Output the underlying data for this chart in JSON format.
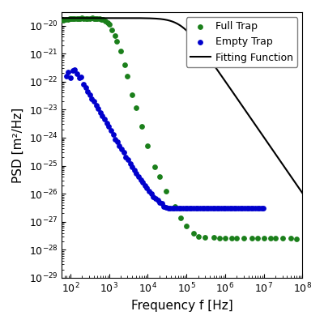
{
  "title": "",
  "xlabel": "Frequency f [Hz]",
  "ylabel": "PSD [m²/Hz]",
  "xlim": [
    60.0,
    100000000.0
  ],
  "ylim": [
    1e-29,
    3e-20
  ],
  "legend_labels": [
    "Full Trap",
    "Empty Trap",
    "Fitting Function"
  ],
  "green_color": "#1a7f1a",
  "blue_color": "#0000cc",
  "fit_color": "#000000",
  "fit_A": 1.85e-20,
  "fit_fc": 75000,
  "fit_gamma": 2.0,
  "noise_floor": 2.5e-28,
  "full_trap_x": [
    65,
    75,
    85,
    95,
    105,
    115,
    130,
    145,
    160,
    180,
    200,
    220,
    250,
    280,
    320,
    360,
    400,
    450,
    500,
    560,
    630,
    700,
    800,
    900,
    1000,
    1200,
    1400,
    1600,
    2000,
    2500,
    3000,
    4000,
    5000,
    7000,
    10000,
    15000,
    20000,
    30000,
    50000,
    70000,
    100000,
    150000,
    200000,
    300000,
    500000,
    700000,
    1000000,
    1500000,
    2000000,
    3000000,
    5000000,
    7000000,
    10000000,
    15000000,
    20000000,
    30000000,
    50000000,
    70000000
  ],
  "full_trap_y": [
    1.55e-20,
    1.65e-20,
    1.7e-20,
    1.75e-20,
    1.75e-20,
    1.78e-20,
    1.8e-20,
    1.82e-20,
    1.82e-20,
    1.82e-20,
    1.83e-20,
    1.82e-20,
    1.82e-20,
    1.82e-20,
    1.82e-20,
    1.83e-20,
    1.82e-20,
    1.82e-20,
    1.8e-20,
    1.78e-20,
    1.7e-20,
    1.6e-20,
    1.45e-20,
    1.3e-20,
    1.1e-20,
    7e-21,
    4.5e-21,
    2.8e-21,
    1.2e-21,
    4e-22,
    1.6e-22,
    3.5e-23,
    1.2e-23,
    2.5e-24,
    5e-25,
    9e-26,
    4e-26,
    1.2e-26,
    3.5e-27,
    1.4e-27,
    7e-28,
    4e-28,
    3e-28,
    2.8e-28,
    2.7e-28,
    2.6e-28,
    2.6e-28,
    2.6e-28,
    2.6e-28,
    2.6e-28,
    2.6e-28,
    2.6e-28,
    2.6e-28,
    2.6e-28,
    2.6e-28,
    2.6e-28,
    2.6e-28,
    2.5e-28
  ],
  "empty_trap_x": [
    78,
    88,
    100,
    115,
    130,
    148,
    168,
    190,
    215,
    245,
    278,
    315,
    357,
    405,
    460,
    522,
    592,
    672,
    762,
    865,
    981,
    1113,
    1263,
    1433,
    1626,
    1845,
    2094,
    2376,
    2696,
    3060,
    3471,
    3937,
    4467,
    5067,
    5748,
    6522,
    7400,
    8396,
    9528,
    10810,
    12263,
    13912,
    15787,
    17908,
    20321,
    23057,
    26158,
    29676,
    33671,
    38209,
    43345,
    49170,
    55781,
    63283,
    71789,
    81466,
    92415,
    104839,
    118959,
    134989,
    153128,
    173780,
    197108,
    223664,
    253702,
    287768,
    326464,
    370450,
    420443,
    477133,
    541358,
    614256,
    696952,
    790574,
    896947,
    1017900,
    1154882,
    1309844,
    1485895,
    1685428,
    1912361,
    2169813,
    2461899,
    2792961,
    3168124,
    3593439,
    4075547,
    4622800,
    5244965,
    5952030,
    6752966,
    7658296,
    8686344,
    9857066
  ],
  "empty_trap_y": [
    1.6e-22,
    2.2e-22,
    1.4e-22,
    2.5e-22,
    2.6e-22,
    1.9e-22,
    1.4e-22,
    1.5e-22,
    8e-23,
    6e-23,
    4.5e-23,
    3.5e-23,
    2.5e-23,
    2e-23,
    1.4e-23,
    1.1e-23,
    8e-24,
    6e-24,
    4.5e-24,
    3.2e-24,
    2.5e-24,
    1.8e-24,
    1.3e-24,
    9e-25,
    7e-25,
    5e-25,
    4e-25,
    3e-25,
    2e-25,
    1.6e-25,
    1.2e-25,
    9e-26,
    7e-26,
    5.5e-26,
    4e-26,
    3.2e-26,
    2.5e-26,
    2e-26,
    1.6e-26,
    1.2e-26,
    1e-26,
    8e-27,
    7e-27,
    6e-27,
    5e-27,
    4.5e-27,
    3.5e-27,
    3.2e-27,
    3e-27,
    3e-27,
    3e-27,
    3e-27,
    3e-27,
    3e-27,
    3e-27,
    3e-27,
    3e-27,
    3e-27,
    3e-27,
    3e-27,
    3e-27,
    3e-27,
    3e-27,
    3e-27,
    3e-27,
    3e-27,
    3e-27,
    3e-27,
    3e-27,
    3e-27,
    3e-27,
    3e-27,
    3e-27,
    3e-27,
    3e-27,
    3e-27,
    3e-27,
    3e-27,
    3e-27,
    3e-27,
    3e-27,
    3e-27,
    3e-27,
    3e-27,
    3e-27,
    3e-27,
    3e-27,
    3e-27,
    3e-27,
    3e-27,
    3e-27,
    3e-27,
    3e-27,
    3e-27
  ]
}
